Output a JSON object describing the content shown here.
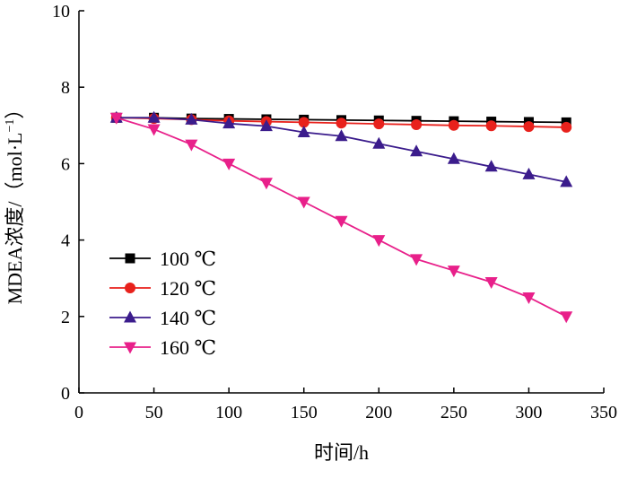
{
  "chart_data": {
    "type": "line",
    "xlabel": "时间/h",
    "ylabel_prefix": "MDEA浓度/（mol·L",
    "ylabel_sup": "−1",
    "ylabel_suffix": "）",
    "xlim": [
      0,
      350
    ],
    "ylim": [
      0,
      10
    ],
    "xticks": [
      0,
      50,
      100,
      150,
      200,
      250,
      300,
      350
    ],
    "yticks": [
      0,
      2,
      4,
      6,
      8,
      10
    ],
    "grid": false,
    "legend_position": "left-lower",
    "x": [
      25,
      50,
      75,
      100,
      125,
      150,
      175,
      200,
      225,
      250,
      275,
      300,
      325
    ],
    "series": [
      {
        "name": "100 ℃",
        "color": "#000000",
        "marker": "square",
        "values": [
          7.2,
          7.2,
          7.18,
          7.17,
          7.16,
          7.15,
          7.14,
          7.13,
          7.12,
          7.11,
          7.1,
          7.09,
          7.08
        ]
      },
      {
        "name": "120 ℃",
        "color": "#e8211c",
        "marker": "circle",
        "values": [
          7.2,
          7.18,
          7.15,
          7.12,
          7.1,
          7.08,
          7.06,
          7.04,
          7.02,
          7.0,
          6.99,
          6.97,
          6.95
        ]
      },
      {
        "name": "140 ℃",
        "color": "#3b1c8c",
        "marker": "triangle-up",
        "values": [
          7.2,
          7.2,
          7.15,
          7.05,
          6.98,
          6.82,
          6.72,
          6.52,
          6.32,
          6.12,
          5.92,
          5.72,
          5.52
        ]
      },
      {
        "name": "160 ℃",
        "color": "#e8208a",
        "marker": "triangle-down",
        "values": [
          7.2,
          6.9,
          6.5,
          6.0,
          5.5,
          5.0,
          4.5,
          4.0,
          3.5,
          3.2,
          2.9,
          2.5,
          2.0
        ]
      }
    ]
  }
}
